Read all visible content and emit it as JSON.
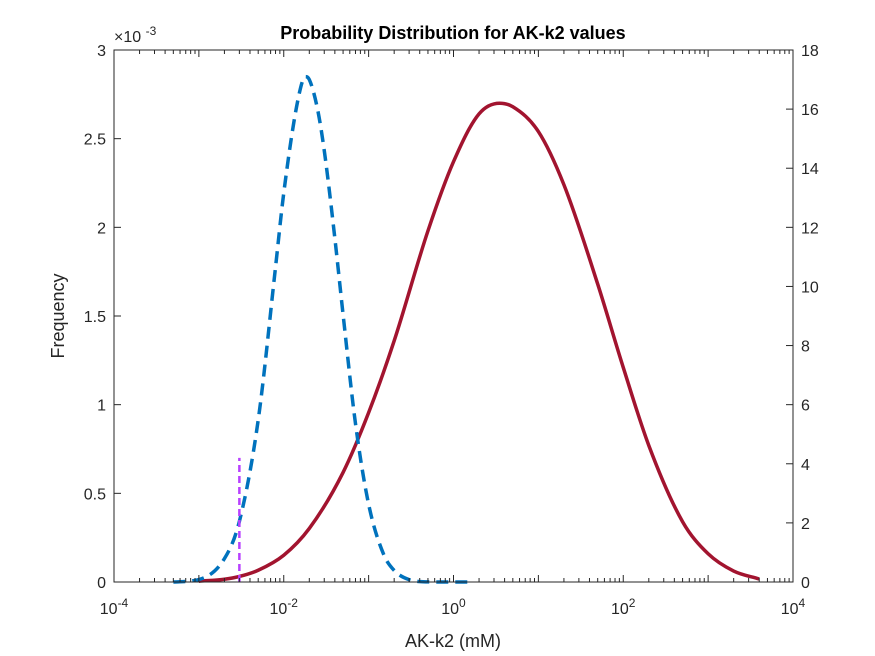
{
  "chart_data": {
    "type": "line",
    "title": "Probability Distribution for AK-k2 values",
    "xlabel": "AK-k2 (mM)",
    "ylabel": "Frequency",
    "xscale": "log",
    "xlim": [
      0.0001,
      10000
    ],
    "x_tick_labels": [
      {
        "base": "10",
        "exp": "-4"
      },
      {
        "base": "10",
        "exp": "-2"
      },
      {
        "base": "10",
        "exp": "0"
      },
      {
        "base": "10",
        "exp": "2"
      },
      {
        "base": "10",
        "exp": "4"
      }
    ],
    "ylim_left": [
      0,
      0.003
    ],
    "y_left_multiplier": {
      "base": "×10",
      "exp": "-3"
    },
    "y_left_tick_labels": [
      "0",
      "0.5",
      "1",
      "1.5",
      "2",
      "2.5",
      "3"
    ],
    "ylim_right": [
      0,
      18
    ],
    "y_right_tick_labels": [
      "0",
      "2",
      "4",
      "6",
      "8",
      "10",
      "12",
      "14",
      "16",
      "18"
    ],
    "grid": false,
    "legend": "none",
    "series": [
      {
        "axis": "left",
        "style": "solid",
        "color": "#A2142F",
        "x": [
          0.001,
          0.002,
          0.003,
          0.005,
          0.01,
          0.02,
          0.05,
          0.1,
          0.2,
          0.5,
          1,
          2,
          3.5,
          5,
          10,
          20,
          50,
          100,
          200,
          500,
          1000,
          2000,
          4000
        ],
        "y": [
          4.4e-06,
          1.56e-05,
          3.14e-05,
          6.64e-05,
          0.000151,
          0.000302,
          0.000618,
          0.000955,
          0.00136,
          0.00198,
          0.00237,
          0.00264,
          0.0027,
          0.00268,
          0.00254,
          0.00224,
          0.00168,
          0.00121,
          0.00077,
          0.00034,
          0.000159,
          6.18e-05,
          1.7e-05
        ]
      },
      {
        "axis": "right",
        "style": "dashed",
        "color": "#0072BD",
        "x": [
          0.0005,
          0.001,
          0.002,
          0.003,
          0.005,
          0.008,
          0.01,
          0.015,
          0.018,
          0.02,
          0.025,
          0.03,
          0.04,
          0.05,
          0.07,
          0.1,
          0.15,
          0.2,
          0.3,
          0.5,
          0.7,
          1,
          1.5
        ],
        "y": [
          0.0,
          0.084,
          0.79,
          2.05,
          5.48,
          10.65,
          13.16,
          16.44,
          17.1,
          17.0,
          16.0,
          14.6,
          11.63,
          9.05,
          5.36,
          2.63,
          0.94,
          0.39,
          0.08,
          0.004,
          0.0,
          0.0,
          0.0
        ]
      },
      {
        "axis": "right",
        "style": "dashed",
        "color": "#B840FF",
        "x": [
          0.003,
          0.003
        ],
        "y": [
          0,
          4.2
        ]
      }
    ]
  }
}
